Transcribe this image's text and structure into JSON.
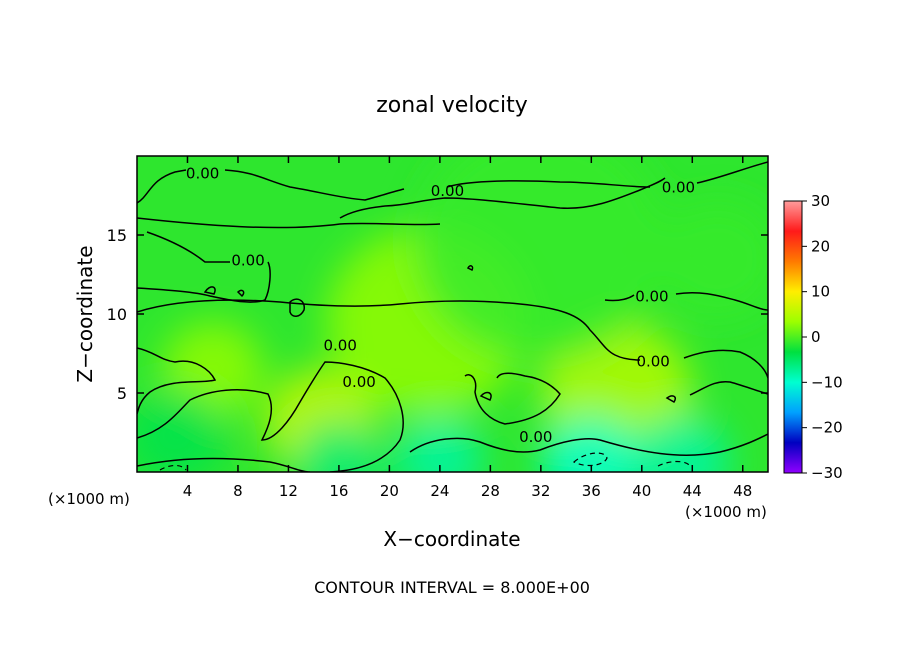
{
  "chart_data": {
    "type": "heatmap",
    "title": "zonal velocity",
    "xlabel": "X−coordinate",
    "ylabel": "Z−coordinate",
    "x_unit_left": "(×1000 m)",
    "x_unit_right": "(×1000 m)",
    "footer": "CONTOUR INTERVAL = 8.000E+00",
    "xlim": [
      0,
      50
    ],
    "ylim": [
      0,
      20
    ],
    "x_ticks": [
      4,
      8,
      12,
      16,
      20,
      24,
      28,
      32,
      36,
      40,
      44,
      48
    ],
    "y_ticks": [
      5,
      10,
      15
    ],
    "colorbar": {
      "range": [
        -30,
        30
      ],
      "ticks": [
        30,
        20,
        10,
        0,
        -10,
        -20,
        -30
      ],
      "colors": [
        "#ff9c9c",
        "#ff1a1a",
        "#ff7a00",
        "#ffee00",
        "#9cff00",
        "#00e040",
        "#00ffd0",
        "#00a0ff",
        "#0000c0",
        "#9000ff"
      ]
    },
    "contour_labels": [
      {
        "text": "0.00",
        "x": 5.2,
        "z": 18.9
      },
      {
        "text": "0.00",
        "x": 24.6,
        "z": 17.8
      },
      {
        "text": "0.00",
        "x": 42.9,
        "z": 18.0
      },
      {
        "text": "0.00",
        "x": 8.8,
        "z": 13.4
      },
      {
        "text": "0.00",
        "x": 40.8,
        "z": 11.1
      },
      {
        "text": "0.00",
        "x": 16.1,
        "z": 8.0
      },
      {
        "text": "0.00",
        "x": 17.6,
        "z": 5.7
      },
      {
        "text": "0.00",
        "x": 40.9,
        "z": 7.0
      },
      {
        "text": "0.00",
        "x": 31.6,
        "z": 2.2
      }
    ],
    "field_patches": [
      {
        "x": 14.5,
        "z": 3.2,
        "r": 4.5,
        "v": 6
      },
      {
        "x": 38,
        "z": 5,
        "r": 6,
        "v": 5
      },
      {
        "x": 23,
        "z": 9.5,
        "r": 8,
        "v": 3
      },
      {
        "x": 6,
        "z": 6.5,
        "r": 4,
        "v": 3
      },
      {
        "x": 24,
        "z": 0.8,
        "r": 3.5,
        "v": -8
      },
      {
        "x": 36,
        "z": 0.6,
        "r": 4,
        "v": -10
      },
      {
        "x": 43,
        "z": 0.6,
        "r": 4,
        "v": -8
      },
      {
        "x": 16,
        "z": 0.6,
        "r": 3.5,
        "v": -6
      },
      {
        "x": 3,
        "z": 2.2,
        "r": 4,
        "v": -4
      },
      {
        "x": 32,
        "z": 14.5,
        "r": 10,
        "v": -1
      },
      {
        "x": 46,
        "z": 13.5,
        "r": 5,
        "v": -1
      }
    ]
  }
}
